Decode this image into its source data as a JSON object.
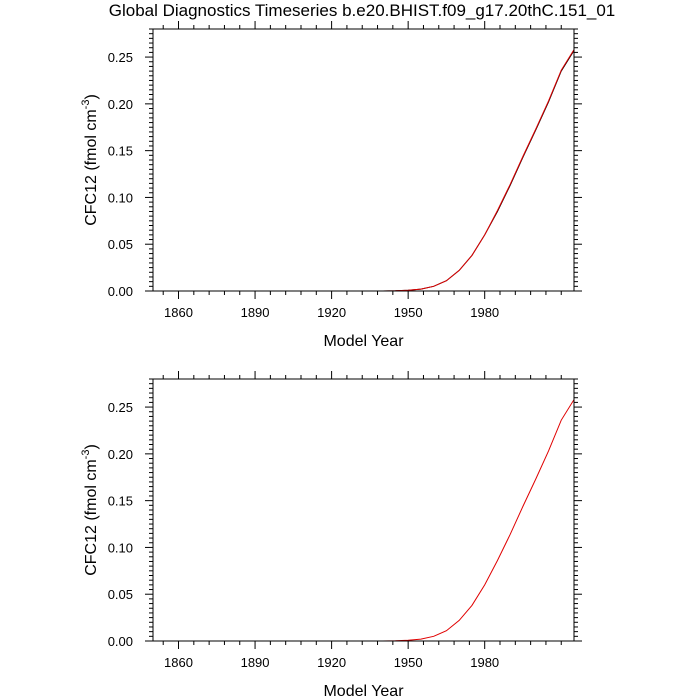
{
  "title": "Global Diagnostics Timeseries b.e20.BHIST.f09_g17.20thC.151_01",
  "chart_data": [
    {
      "type": "line",
      "title": "Global Diagnostics Timeseries b.e20.BHIST.f09_g17.20thC.151_01",
      "xlabel": "Model Year",
      "ylabel_main": "CFC12 (fmol cm",
      "ylabel_sup": "-3",
      "ylabel_close": ")",
      "xlim": [
        1850,
        2015
      ],
      "ylim": [
        0,
        0.28
      ],
      "xticks": [
        1860,
        1890,
        1920,
        1950,
        1980
      ],
      "xtick_labels": [
        "1860",
        "1890",
        "1920",
        "1950",
        "1980"
      ],
      "yticks": [
        0,
        0.05,
        0.1,
        0.15,
        0.2,
        0.25
      ],
      "ytick_labels": [
        "0.00",
        "0.05",
        "0.10",
        "0.15",
        "0.20",
        "0.25"
      ],
      "series": [
        {
          "name": "black",
          "color": "#000000",
          "x": [
            1850,
            1900,
            1940,
            1945,
            1950,
            1955,
            1960,
            1965,
            1970,
            1975,
            1980,
            1985,
            1990,
            1995,
            2000,
            2005,
            2010,
            2015
          ],
          "values": [
            0,
            0,
            0,
            0.0002,
            0.0008,
            0.002,
            0.005,
            0.011,
            0.022,
            0.038,
            0.06,
            0.085,
            0.113,
            0.143,
            0.172,
            0.202,
            0.235,
            0.257
          ]
        },
        {
          "name": "red",
          "color": "#e00000",
          "x": [
            1850,
            1900,
            1940,
            1945,
            1950,
            1955,
            1960,
            1965,
            1970,
            1975,
            1980,
            1985,
            1990,
            1995,
            2000,
            2005,
            2010,
            2015
          ],
          "values": [
            0,
            0,
            0,
            0.0002,
            0.0008,
            0.002,
            0.005,
            0.011,
            0.022,
            0.038,
            0.06,
            0.086,
            0.114,
            0.144,
            0.173,
            0.203,
            0.236,
            0.258
          ]
        }
      ]
    },
    {
      "type": "line",
      "xlabel": "Model Year",
      "ylabel_main": "CFC12 (fmol cm",
      "ylabel_sup": "-3",
      "ylabel_close": ")",
      "xlim": [
        1850,
        2015
      ],
      "ylim": [
        0,
        0.28
      ],
      "xticks": [
        1860,
        1890,
        1920,
        1950,
        1980
      ],
      "xtick_labels": [
        "1860",
        "1890",
        "1920",
        "1950",
        "1980"
      ],
      "yticks": [
        0,
        0.05,
        0.1,
        0.15,
        0.2,
        0.25
      ],
      "ytick_labels": [
        "0.00",
        "0.05",
        "0.10",
        "0.15",
        "0.20",
        "0.25"
      ],
      "series": [
        {
          "name": "red",
          "color": "#e00000",
          "x": [
            1850,
            1900,
            1940,
            1945,
            1950,
            1955,
            1960,
            1965,
            1970,
            1975,
            1980,
            1985,
            1990,
            1995,
            2000,
            2005,
            2010,
            2015
          ],
          "values": [
            0,
            0,
            0,
            0.0002,
            0.0008,
            0.002,
            0.005,
            0.011,
            0.022,
            0.038,
            0.06,
            0.086,
            0.114,
            0.144,
            0.173,
            0.203,
            0.236,
            0.258
          ]
        }
      ]
    }
  ]
}
